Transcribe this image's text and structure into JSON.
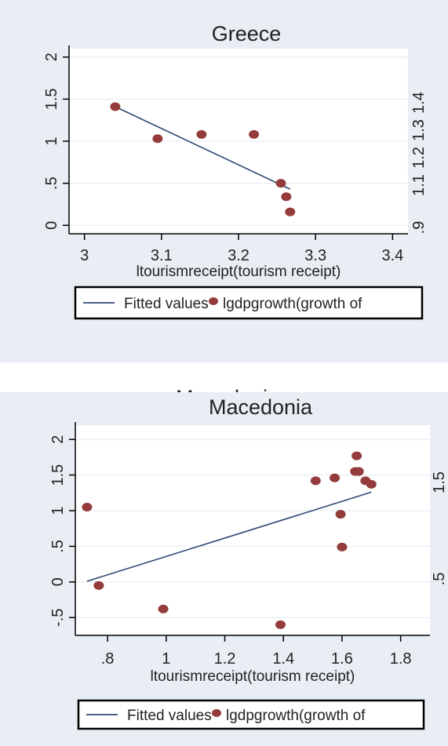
{
  "chart_data": [
    {
      "type": "scatter",
      "title": "Greece",
      "xlabel": "ltourismreceipt(tourism receipt)",
      "xlim": [
        2.98,
        3.42
      ],
      "ylim": [
        -0.1,
        2.1
      ],
      "x_ticks": [
        "3",
        "3.1",
        "3.2",
        "3.3",
        "3.4"
      ],
      "y_ticks": [
        "0",
        ".5",
        "1",
        "1.5",
        "2"
      ],
      "y2_ticks": [
        ".9",
        "1.1",
        "1.2",
        "1.3",
        "1.4"
      ],
      "points": [
        {
          "x": 3.04,
          "y": 1.41
        },
        {
          "x": 3.095,
          "y": 1.03
        },
        {
          "x": 3.152,
          "y": 1.08
        },
        {
          "x": 3.22,
          "y": 1.08
        },
        {
          "x": 3.255,
          "y": 0.5
        },
        {
          "x": 3.262,
          "y": 0.34
        },
        {
          "x": 3.267,
          "y": 0.16
        }
      ],
      "fitted_line": [
        {
          "x": 3.04,
          "y": 1.41
        },
        {
          "x": 3.267,
          "y": 0.43
        }
      ],
      "legend": [
        "Fitted values",
        "lgdpgrowth(growth of "
      ],
      "marker_color": "#943b3b",
      "line_color": "#2e4a73"
    },
    {
      "type": "scatter",
      "title": "Macedonia",
      "xlabel": "ltourismreceipt(tourism receipt)",
      "xlim": [
        0.69,
        1.9
      ],
      "ylim": [
        -0.75,
        2.2
      ],
      "x_ticks": [
        ".8",
        "1",
        "1.2",
        "1.4",
        "1.6",
        "1.8"
      ],
      "y_ticks": [
        "-.5",
        "0",
        ".5",
        "1",
        "1.5",
        "2"
      ],
      "y2_ticks": [
        "1.5",
        ".5"
      ],
      "points": [
        {
          "x": 0.73,
          "y": 1.05
        },
        {
          "x": 0.77,
          "y": -0.05
        },
        {
          "x": 0.99,
          "y": -0.38
        },
        {
          "x": 1.39,
          "y": -0.6
        },
        {
          "x": 1.51,
          "y": 1.42
        },
        {
          "x": 1.575,
          "y": 1.46
        },
        {
          "x": 1.595,
          "y": 0.95
        },
        {
          "x": 1.6,
          "y": 0.49
        },
        {
          "x": 1.645,
          "y": 1.55
        },
        {
          "x": 1.65,
          "y": 1.77
        },
        {
          "x": 1.657,
          "y": 1.55
        },
        {
          "x": 1.68,
          "y": 1.42
        },
        {
          "x": 1.7,
          "y": 1.37
        }
      ],
      "fitted_line": [
        {
          "x": 0.73,
          "y": 0.01
        },
        {
          "x": 1.7,
          "y": 1.26
        }
      ],
      "legend": [
        "Fitted values",
        "lgdpgrowth(growth of "
      ],
      "marker_color": "#943b3b",
      "line_color": "#2e4a73"
    }
  ],
  "overlap_caption": "Macedonia"
}
